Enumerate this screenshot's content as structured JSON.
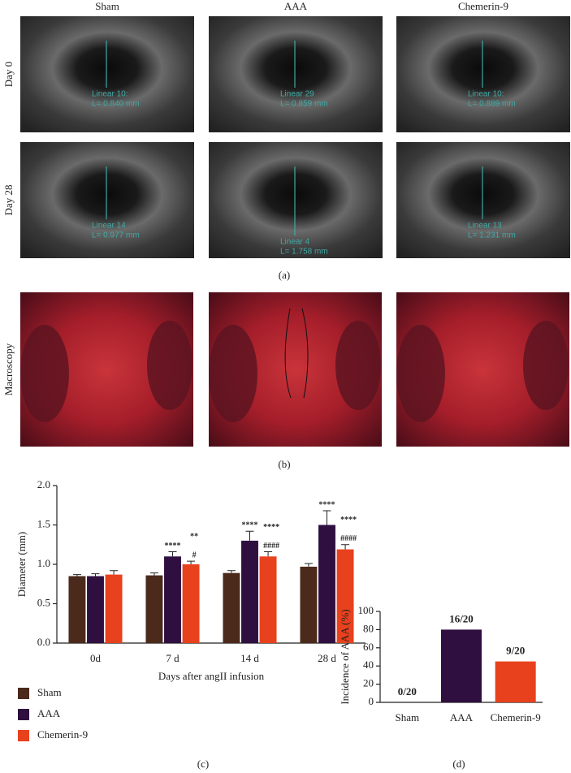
{
  "figure": {
    "columns": [
      "Sham",
      "AAA",
      "Chemerin-9"
    ],
    "rows": [
      "Day 0",
      "Day 28"
    ],
    "ultrasound": [
      [
        {
          "label": "Linear 10:",
          "measure": "L= 0.840 mm"
        },
        {
          "label": "Linear 29",
          "measure": "L= 0.859 mm"
        },
        {
          "label": "Linear 10:",
          "measure": "L= 0.889 mm"
        }
      ],
      [
        {
          "label": "Linear 14",
          "measure": "L= 0.977 mm"
        },
        {
          "label": "Linear 4",
          "measure": "L= 1.758 mm"
        },
        {
          "label": "Linear 13",
          "measure": "L= 1.231 mm"
        }
      ]
    ],
    "panel_a": "(a)",
    "macroscopy_label": "Macroscopy",
    "panel_b": "(b)",
    "panel_c": "(c)",
    "panel_d": "(d)"
  },
  "chart_data": [
    {
      "type": "bar",
      "categories": [
        "0d",
        "7 d",
        "14 d",
        "28 d"
      ],
      "x_label": "Days after angII infusion",
      "y_label": "Diameter (mm)",
      "ylim": [
        0,
        2.0
      ],
      "yticks": [
        {
          "value": 0,
          "label": "0.0"
        },
        0.5,
        {
          "value": 1,
          "label": "1.0"
        },
        1.5,
        {
          "value": 2,
          "label": "2.0"
        }
      ],
      "legend": "below",
      "series": [
        {
          "name": "Sham",
          "color": "#4b2a1b",
          "values": [
            0.85,
            0.86,
            0.89,
            0.97
          ],
          "errors": [
            0.02,
            0.03,
            0.03,
            0.04
          ],
          "annotations": [
            null,
            null,
            null,
            null
          ]
        },
        {
          "name": "AAA",
          "color": "#2f0f40",
          "values": [
            0.85,
            1.1,
            1.3,
            1.5
          ],
          "errors": [
            0.03,
            0.06,
            0.12,
            0.18
          ],
          "annotations": [
            null,
            [
              "****"
            ],
            [
              "****"
            ],
            [
              "****"
            ]
          ]
        },
        {
          "name": "Chemerin-9",
          "color": "#e8411d",
          "values": [
            0.87,
            1.0,
            1.1,
            1.19
          ],
          "errors": [
            0.05,
            0.04,
            0.06,
            0.06
          ],
          "annotations": [
            null,
            [
              "**",
              "#"
            ],
            [
              "****",
              "####"
            ],
            [
              "****",
              "####"
            ]
          ]
        }
      ]
    },
    {
      "type": "bar",
      "categories": [
        "Sham",
        "AAA",
        "Chemerin-9"
      ],
      "y_label": "Incidence of AAA (%)",
      "ylim": [
        0,
        100
      ],
      "yticks": [
        0,
        20,
        40,
        60,
        80,
        100
      ],
      "values": [
        0,
        80,
        45
      ],
      "value_labels": [
        "0/20",
        "16/20",
        "9/20"
      ],
      "colors": [
        "#4b2a1b",
        "#2f0f40",
        "#e8411d"
      ]
    }
  ]
}
